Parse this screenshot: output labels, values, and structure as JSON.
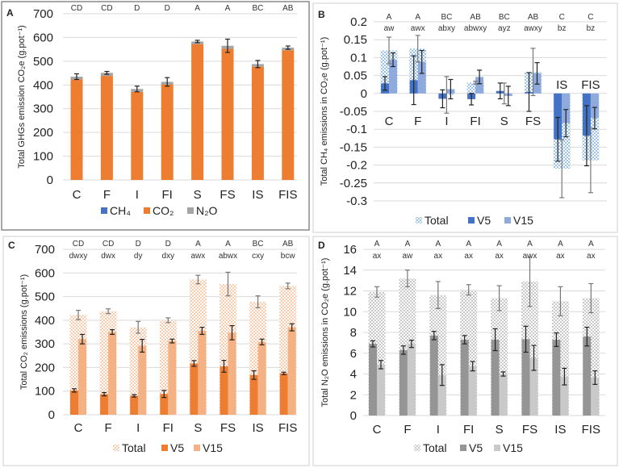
{
  "chart_data": [
    {
      "panel_label": "A",
      "type": "bar",
      "stacked": true,
      "categories": [
        "C",
        "F",
        "I",
        "FI",
        "S",
        "FS",
        "IS",
        "FIS"
      ],
      "ylabel": "Total GHGs emission CO₂e (g.pot⁻¹)",
      "ylim": [
        0,
        700
      ],
      "yticks": [
        0,
        100,
        200,
        300,
        400,
        500,
        600,
        700
      ],
      "grid": true,
      "legend_position": "bottom",
      "significance_rows": [
        [
          "CD",
          "CD",
          "D",
          "D",
          "A",
          "A",
          "BC",
          "AB"
        ]
      ],
      "series": [
        {
          "name": "CH₄",
          "color": "#4472C4",
          "values": [
            0.12,
            0.125,
            -0.004,
            0.03,
            0,
            0.06,
            -0.21,
            -0.187
          ]
        },
        {
          "name": "CO₂",
          "color": "#ED7D31",
          "values": [
            423,
            438,
            371,
            401,
            572,
            552,
            477,
            546
          ]
        },
        {
          "name": "N₂O",
          "color": "#A5A5A5",
          "values": [
            12,
            13,
            12,
            12,
            11,
            13,
            11,
            11
          ]
        }
      ],
      "totals": [
        435,
        451,
        383,
        413,
        583,
        565,
        488,
        557
      ],
      "total_errors": [
        12,
        6,
        12,
        18,
        5,
        28,
        15,
        7
      ]
    },
    {
      "panel_label": "B",
      "type": "bar",
      "categories": [
        "C",
        "F",
        "I",
        "FI",
        "S",
        "FS",
        "IS",
        "FIS"
      ],
      "ylabel": "Total CH₄ emissions in CO₂e (g.pot⁻¹)",
      "ylim": [
        -0.3,
        0.2
      ],
      "yticks": [
        -0.3,
        -0.25,
        -0.2,
        -0.15,
        -0.1,
        -0.05,
        0,
        0.05,
        0.1,
        0.15,
        0.2
      ],
      "grid": true,
      "legend_position": "bottom",
      "significance_rows": [
        [
          "A",
          "A",
          "BC",
          "AB",
          "BC",
          "AB",
          "C",
          "C"
        ],
        [
          "aw",
          "awx",
          "abxy",
          "abwxy",
          "ayz",
          "awxy",
          "bz",
          "bz"
        ]
      ],
      "series": [
        {
          "name": "Total",
          "color": "#9DC3E6",
          "pattern": true,
          "values": [
            0.12,
            0.125,
            -0.004,
            0.03,
            0,
            0.06,
            -0.21,
            -0.187
          ],
          "errors": [
            0.037,
            0.037,
            0.051,
            0.004,
            0.029,
            0.066,
            0.081,
            0.09
          ]
        },
        {
          "name": "V5",
          "color": "#4472C4",
          "values": [
            0.028,
            0.037,
            -0.015,
            -0.016,
            0.007,
            0.004,
            -0.128,
            -0.118
          ],
          "errors": [
            0.019,
            0.068,
            0.025,
            0.016,
            0.022,
            0.054,
            0.061,
            0.084
          ]
        },
        {
          "name": "V15",
          "color": "#8FAADC",
          "values": [
            0.094,
            0.088,
            0.012,
            0.046,
            -0.007,
            0.056,
            -0.083,
            -0.069
          ],
          "errors": [
            0.019,
            0.032,
            0.027,
            0.019,
            0.027,
            0.03,
            0.038,
            0.03
          ]
        }
      ]
    },
    {
      "panel_label": "C",
      "type": "bar",
      "categories": [
        "C",
        "F",
        "I",
        "FI",
        "S",
        "FS",
        "IS",
        "FIS"
      ],
      "ylabel": "Total CO₂ emissions (g.pot⁻¹)",
      "ylim": [
        0,
        700
      ],
      "yticks": [
        0,
        100,
        200,
        300,
        400,
        500,
        600,
        700
      ],
      "grid": true,
      "legend_position": "bottom",
      "significance_rows": [
        [
          "CD",
          "CD",
          "D",
          "D",
          "A",
          "A",
          "BC",
          "AB"
        ],
        [
          "dwxy",
          "dwx",
          "dy",
          "dxy",
          "awx",
          "abwx",
          "cxy",
          "bcw"
        ]
      ],
      "series": [
        {
          "name": "Total",
          "color": "#F4B183",
          "pattern": true,
          "values": [
            422,
            438,
            370,
            400,
            572,
            553,
            478,
            545
          ],
          "errors": [
            20,
            10,
            25,
            10,
            18,
            50,
            25,
            12
          ]
        },
        {
          "name": "V5",
          "color": "#ED7D31",
          "values": [
            103,
            87,
            80,
            88,
            217,
            205,
            168,
            175
          ],
          "errors": [
            7,
            7,
            5,
            15,
            12,
            25,
            18,
            5
          ]
        },
        {
          "name": "V15",
          "color": "#F4B183",
          "values": [
            320,
            350,
            292,
            312,
            355,
            347,
            308,
            370
          ],
          "errors": [
            20,
            10,
            27,
            8,
            15,
            30,
            12,
            15
          ]
        }
      ]
    },
    {
      "panel_label": "D",
      "type": "bar",
      "categories": [
        "C",
        "F",
        "I",
        "FI",
        "S",
        "FS",
        "IS",
        "FIS"
      ],
      "ylabel": "Total N₂O emissions in CO₂e (g.pot⁻¹)",
      "ylim": [
        0,
        16
      ],
      "yticks": [
        0,
        2,
        4,
        6,
        8,
        10,
        12,
        14,
        16
      ],
      "grid": true,
      "legend_position": "bottom",
      "significance_rows": [
        [
          "A",
          "A",
          "A",
          "A",
          "A",
          "A",
          "A",
          "A"
        ],
        [
          "ax",
          "aw",
          "ax",
          "ax",
          "ax",
          "awx",
          "ax",
          "ax"
        ]
      ],
      "series": [
        {
          "name": "Total",
          "color": "#BFBFBF",
          "pattern": true,
          "values": [
            11.9,
            13.2,
            11.6,
            12.1,
            11.3,
            12.9,
            11.0,
            11.3
          ],
          "errors": [
            0.5,
            0.8,
            1.3,
            0.5,
            1.2,
            2.4,
            1.4,
            1.4
          ]
        },
        {
          "name": "V5",
          "color": "#959595",
          "values": [
            6.9,
            6.3,
            7.7,
            7.3,
            7.3,
            7.35,
            7.3,
            7.6
          ],
          "errors": [
            0.3,
            0.4,
            0.4,
            0.4,
            1.05,
            1.25,
            0.65,
            0.9
          ]
        },
        {
          "name": "V15",
          "color": "#C9C9C9",
          "values": [
            4.9,
            6.9,
            3.9,
            4.75,
            4.0,
            5.55,
            3.75,
            3.65
          ],
          "errors": [
            0.4,
            0.35,
            1.0,
            0.45,
            0.2,
            1.2,
            0.8,
            0.65
          ]
        }
      ]
    }
  ]
}
